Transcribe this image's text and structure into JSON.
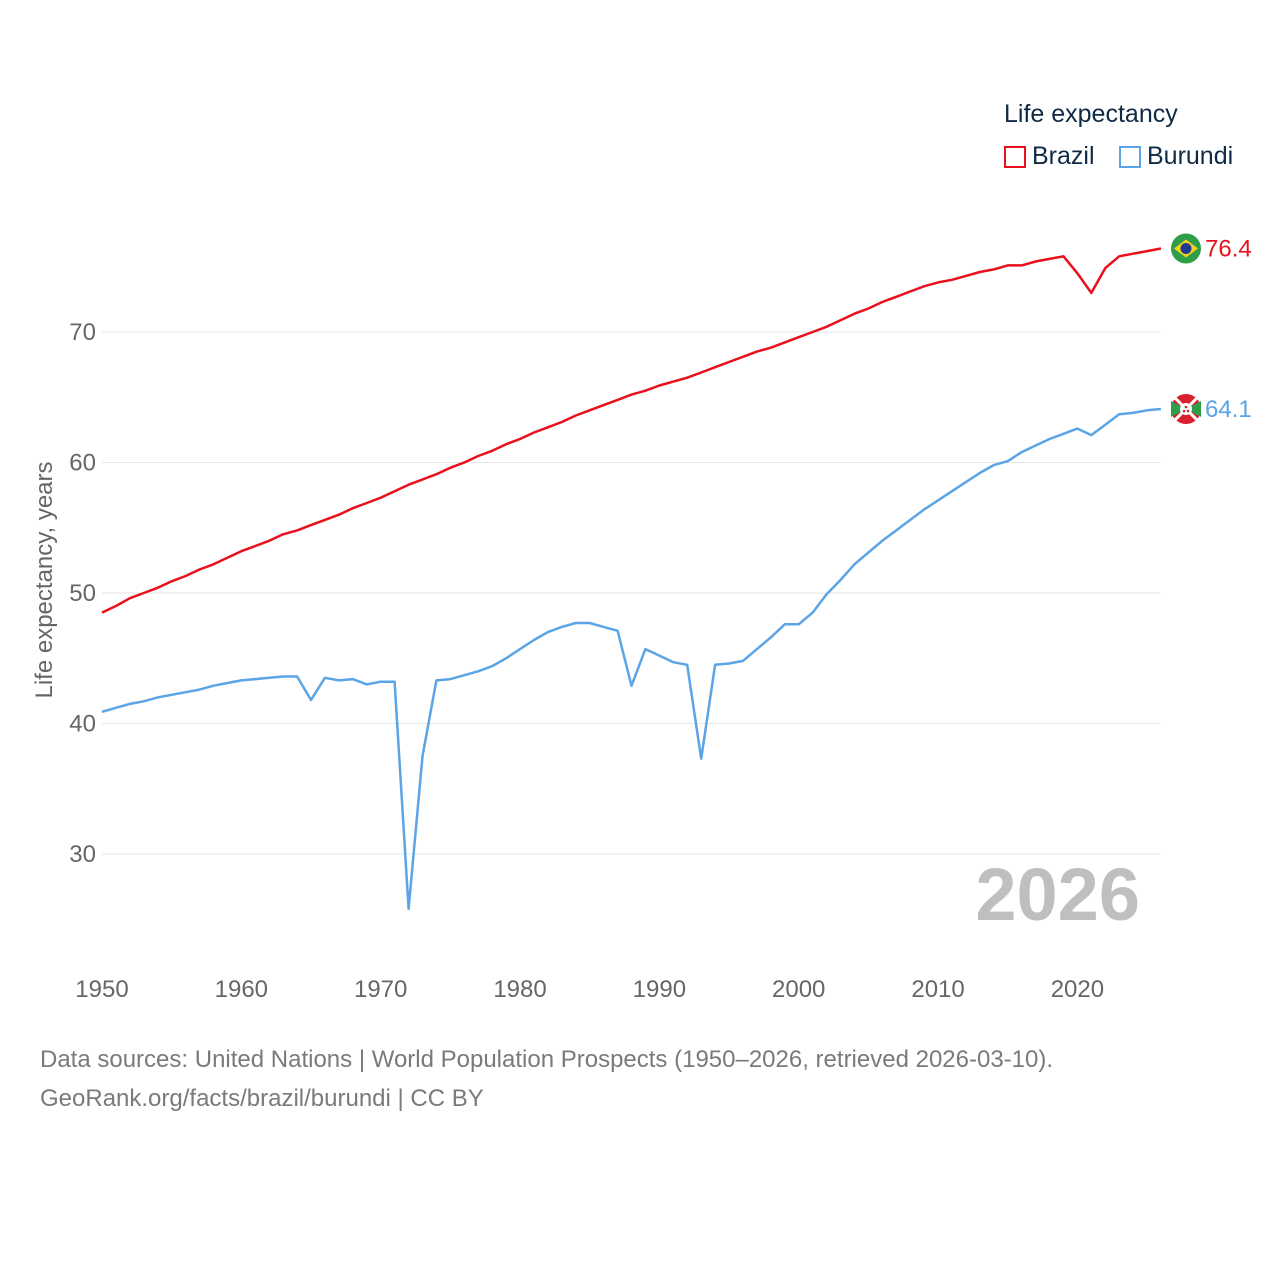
{
  "chart_data": {
    "type": "line",
    "legend_title": "Life expectancy",
    "ylabel": "Life expectancy, years",
    "xlabel": "",
    "xlim": [
      1950,
      2026
    ],
    "ylim": [
      25,
      80
    ],
    "x_ticks": [
      1950,
      1960,
      1970,
      1980,
      1990,
      2000,
      2010,
      2020
    ],
    "y_ticks": [
      30,
      40,
      50,
      60,
      70
    ],
    "year_label": "2026",
    "x": [
      1950,
      1951,
      1952,
      1953,
      1954,
      1955,
      1956,
      1957,
      1958,
      1959,
      1960,
      1961,
      1962,
      1963,
      1964,
      1965,
      1966,
      1967,
      1968,
      1969,
      1970,
      1971,
      1972,
      1973,
      1974,
      1975,
      1976,
      1977,
      1978,
      1979,
      1980,
      1981,
      1982,
      1983,
      1984,
      1985,
      1986,
      1987,
      1988,
      1989,
      1990,
      1991,
      1992,
      1993,
      1994,
      1995,
      1996,
      1997,
      1998,
      1999,
      2000,
      2001,
      2002,
      2003,
      2004,
      2005,
      2006,
      2007,
      2008,
      2009,
      2010,
      2011,
      2012,
      2013,
      2014,
      2015,
      2016,
      2017,
      2018,
      2019,
      2020,
      2021,
      2022,
      2023,
      2024,
      2025,
      2026
    ],
    "series": [
      {
        "name": "Brazil",
        "color": "#e8101c",
        "end_label": "76.4",
        "flag": "brazil-flag",
        "values": [
          48.5,
          49.0,
          49.6,
          50.0,
          50.4,
          50.9,
          51.3,
          51.8,
          52.2,
          52.7,
          53.2,
          53.6,
          54.0,
          54.5,
          54.8,
          55.2,
          55.6,
          56.0,
          56.5,
          56.9,
          57.3,
          57.8,
          58.3,
          58.7,
          59.1,
          59.6,
          60.0,
          60.5,
          60.9,
          61.4,
          61.8,
          62.3,
          62.7,
          63.1,
          63.6,
          64.0,
          64.4,
          64.8,
          65.2,
          65.5,
          65.9,
          66.2,
          66.5,
          66.9,
          67.3,
          67.7,
          68.1,
          68.5,
          68.8,
          69.2,
          69.6,
          70.0,
          70.4,
          70.9,
          71.4,
          71.8,
          72.3,
          72.7,
          73.1,
          73.5,
          73.8,
          74.0,
          74.3,
          74.6,
          74.8,
          75.1,
          75.1,
          75.4,
          75.6,
          75.8,
          74.5,
          73.0,
          74.9,
          75.8,
          76.0,
          76.2,
          76.4
        ]
      },
      {
        "name": "Burundi",
        "color": "#5ba4e5",
        "end_label": "64.1",
        "flag": "burundi-flag",
        "values": [
          40.9,
          41.2,
          41.5,
          41.7,
          42.0,
          42.2,
          42.4,
          42.6,
          42.9,
          43.1,
          43.3,
          43.4,
          43.5,
          43.6,
          43.6,
          41.8,
          43.5,
          43.3,
          43.4,
          43.0,
          43.2,
          43.2,
          25.8,
          37.5,
          43.3,
          43.4,
          43.7,
          44.0,
          44.4,
          45.0,
          45.7,
          46.4,
          47.0,
          47.4,
          47.7,
          47.7,
          47.4,
          47.1,
          42.9,
          45.7,
          45.2,
          44.7,
          44.5,
          37.3,
          44.5,
          44.6,
          44.8,
          45.7,
          46.6,
          47.6,
          47.6,
          48.5,
          49.9,
          51.0,
          52.2,
          53.1,
          54.0,
          54.8,
          55.6,
          56.4,
          57.1,
          57.8,
          58.5,
          59.2,
          59.8,
          60.1,
          60.8,
          61.3,
          61.8,
          62.2,
          62.6,
          62.1,
          62.9,
          63.7,
          63.8,
          64.0,
          64.1
        ]
      }
    ]
  },
  "footer": {
    "line1": "Data sources: United Nations | World Population Prospects (1950–2026, retrieved 2026-03-10).",
    "line2": "GeoRank.org/facts/brazil/burundi | CC BY"
  }
}
